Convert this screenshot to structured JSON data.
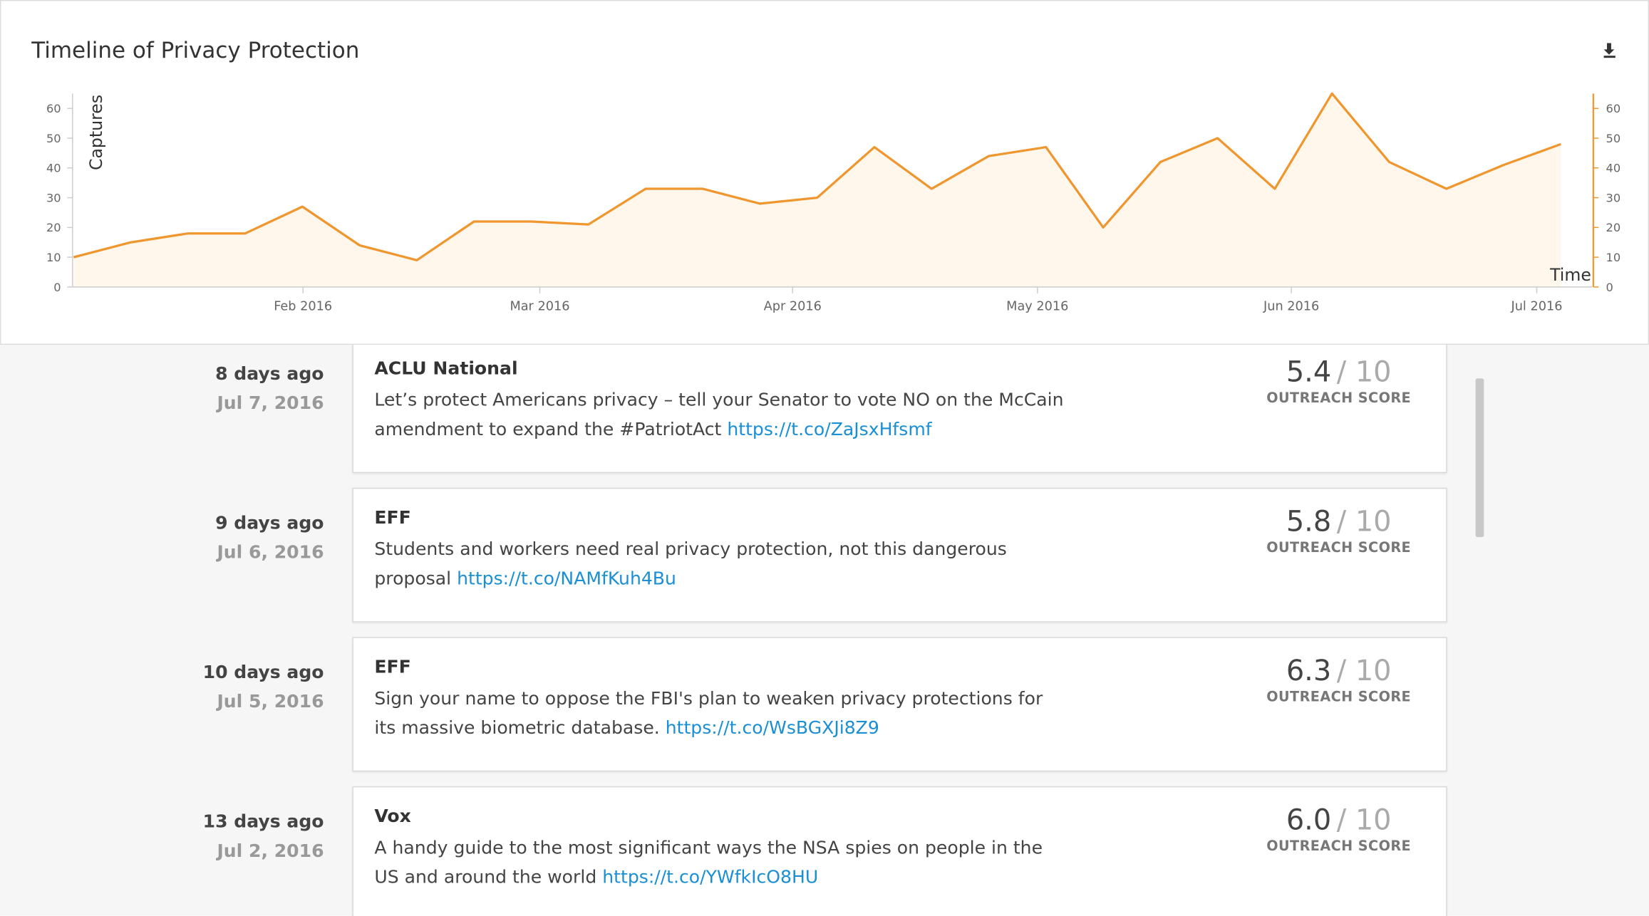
{
  "chart_data": {
    "type": "line",
    "title": "Timeline of Privacy Protection",
    "ylabel": "Captures",
    "xlabel": "Time",
    "x": [
      0,
      1,
      2,
      3,
      4,
      5,
      6,
      7,
      8,
      9,
      10,
      11,
      12,
      13,
      14,
      15,
      16,
      17,
      18,
      19,
      20,
      21,
      22,
      23,
      24,
      25,
      26
    ],
    "series": [
      {
        "name": "Captures",
        "color": "#f0962e",
        "values": [
          10,
          15,
          18,
          18,
          27,
          14,
          9,
          22,
          22,
          21,
          33,
          33,
          28,
          30,
          47,
          33,
          44,
          47,
          20,
          42,
          50,
          33,
          65,
          42,
          33,
          41,
          48
        ]
      }
    ],
    "xlim": [
      0,
      26.55
    ],
    "xticks": [
      {
        "value": 4.01,
        "label": "Feb 2016"
      },
      {
        "value": 8.15,
        "label": "Mar 2016"
      },
      {
        "value": 12.57,
        "label": "Apr 2016"
      },
      {
        "value": 16.85,
        "label": "May 2016"
      },
      {
        "value": 21.29,
        "label": "Jun 2016"
      },
      {
        "value": 25.58,
        "label": "Jul 2016"
      }
    ],
    "ylim": [
      0,
      65
    ],
    "yticks": [
      0,
      10,
      20,
      30,
      40,
      50,
      60
    ],
    "y2lim": [
      0,
      65
    ],
    "y2ticks": [
      0,
      10,
      20,
      30,
      40,
      50,
      60
    ],
    "y2color": "#f0962e",
    "area_color": "#fff7ec"
  },
  "items": [
    {
      "ago": "8 days ago",
      "date": "Jul 7, 2016",
      "source": "ACLU National",
      "text": "Let’s protect Americans privacy – tell your Senator to vote NO on the McCain amendment to expand the #PatriotAct",
      "link": "https://t.co/ZaJsxHfsmf",
      "score": "5.4",
      "max": "/ 10",
      "score_label": "OUTREACH SCORE"
    },
    {
      "ago": "9 days ago",
      "date": "Jul 6, 2016",
      "source": "EFF",
      "text": "Students and workers need real privacy protection, not this dangerous proposal",
      "link": "https://t.co/NAMfKuh4Bu",
      "score": "5.8",
      "max": "/ 10",
      "score_label": "OUTREACH SCORE"
    },
    {
      "ago": "10 days ago",
      "date": "Jul 5, 2016",
      "source": "EFF",
      "text": "Sign your name to oppose the FBI's plan to weaken privacy protections for its massive biometric database.",
      "link": "https://t.co/WsBGXJi8Z9",
      "score": "6.3",
      "max": "/ 10",
      "score_label": "OUTREACH SCORE"
    },
    {
      "ago": "13 days ago",
      "date": "Jul 2, 2016",
      "source": "Vox",
      "text": "A handy guide to the most significant ways the NSA spies on people in the US and around the world",
      "link": "https://t.co/YWfkIcO8HU",
      "score": "6.0",
      "max": "/ 10",
      "score_label": "OUTREACH SCORE"
    }
  ]
}
